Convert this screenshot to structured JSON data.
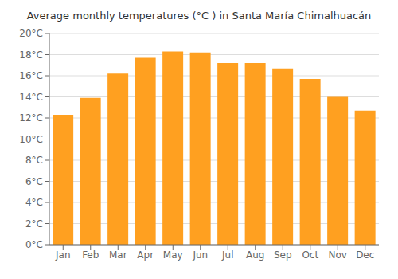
{
  "chart_data": {
    "type": "bar",
    "title": "Average monthly temperatures (°C ) in Santa María Chimalhuacán",
    "categories": [
      "Jan",
      "Feb",
      "Mar",
      "Apr",
      "May",
      "Jun",
      "Jul",
      "Aug",
      "Sep",
      "Oct",
      "Nov",
      "Dec"
    ],
    "values": [
      12.3,
      13.9,
      16.2,
      17.7,
      18.3,
      18.2,
      17.2,
      17.2,
      16.7,
      15.7,
      14.0,
      12.7
    ],
    "color": "#FFA020",
    "ylim": [
      0,
      20
    ],
    "yticks": [
      {
        "value": 0,
        "label": "0°C"
      },
      {
        "value": 2,
        "label": "2°C"
      },
      {
        "value": 4,
        "label": "4°C"
      },
      {
        "value": 6,
        "label": "6°C"
      },
      {
        "value": 8,
        "label": "8°C"
      },
      {
        "value": 10,
        "label": "10°C"
      },
      {
        "value": 12,
        "label": "12°C"
      },
      {
        "value": 14,
        "label": "14°C"
      },
      {
        "value": 16,
        "label": "16°C"
      },
      {
        "value": 18,
        "label": "18°C"
      },
      {
        "value": 20,
        "label": "20°C"
      }
    ],
    "grid": true
  }
}
